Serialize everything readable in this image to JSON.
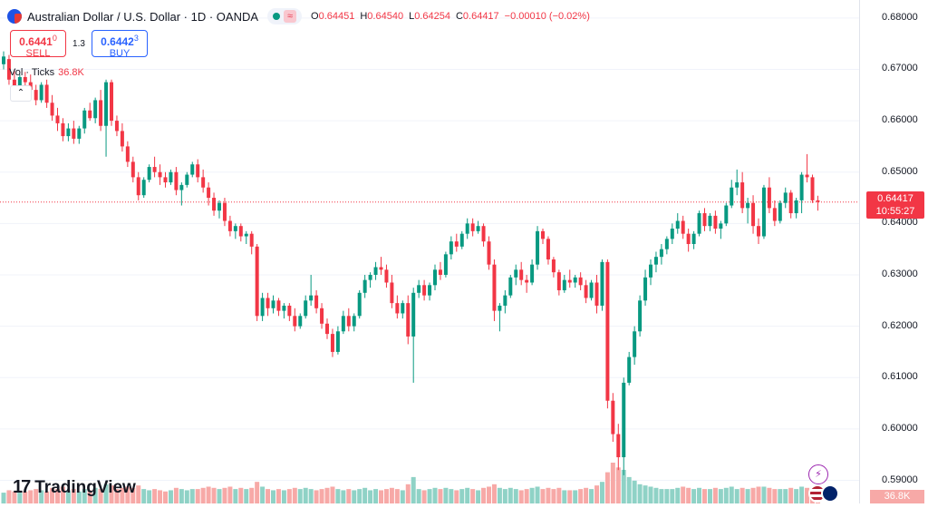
{
  "header": {
    "title": "Australian Dollar / U.S. Dollar · 1D · OANDA",
    "wave_symbol": "≈",
    "ohlc": [
      {
        "k": "O",
        "v": "0.64451"
      },
      {
        "k": "H",
        "v": "0.64540"
      },
      {
        "k": "L",
        "v": "0.64254"
      },
      {
        "k": "C",
        "v": "0.64417"
      },
      {
        "k": "",
        "v": "−0.00010 (−0.02%)"
      }
    ]
  },
  "trade": {
    "sell_price": "0.6441",
    "sell_sup": "0",
    "sell_label": "SELL",
    "spread": "1.3",
    "buy_price": "0.6442",
    "buy_sup": "3",
    "buy_label": "BUY"
  },
  "volume": {
    "label": "Vol · Ticks",
    "value": "36.8K",
    "tag": "36.8K"
  },
  "price_axis": {
    "ticks": [
      "0.68000",
      "0.67000",
      "0.66000",
      "0.65000",
      "0.64000",
      "0.63000",
      "0.62000",
      "0.61000",
      "0.60000",
      "0.59000"
    ],
    "current_price": "0.64417",
    "countdown": "10:55:27"
  },
  "brand": {
    "logo": "17",
    "name": "TradingView"
  },
  "colors": {
    "up": "#089981",
    "down": "#f23645",
    "up_vol": "#8fd2c6",
    "down_vol": "#f7a9a7"
  },
  "chart_data": {
    "type": "candlestick",
    "y_range": [
      0.5855,
      0.6835
    ],
    "current_price": 0.64417,
    "candles": [
      [
        0.671,
        0.6735,
        0.67,
        0.6725,
        9
      ],
      [
        0.672,
        0.6728,
        0.667,
        0.668,
        11
      ],
      [
        0.668,
        0.67,
        0.6655,
        0.6665,
        10
      ],
      [
        0.6665,
        0.669,
        0.666,
        0.6685,
        9
      ],
      [
        0.6685,
        0.6695,
        0.6665,
        0.6675,
        10
      ],
      [
        0.6675,
        0.669,
        0.665,
        0.666,
        11
      ],
      [
        0.666,
        0.667,
        0.663,
        0.664,
        12
      ],
      [
        0.664,
        0.6675,
        0.6635,
        0.667,
        11
      ],
      [
        0.667,
        0.668,
        0.6625,
        0.6635,
        10
      ],
      [
        0.6635,
        0.665,
        0.66,
        0.661,
        13
      ],
      [
        0.661,
        0.6625,
        0.658,
        0.6595,
        12
      ],
      [
        0.6595,
        0.6605,
        0.656,
        0.657,
        14
      ],
      [
        0.657,
        0.6595,
        0.656,
        0.6585,
        11
      ],
      [
        0.6585,
        0.66,
        0.6555,
        0.6565,
        12
      ],
      [
        0.6565,
        0.659,
        0.6555,
        0.6585,
        10
      ],
      [
        0.6585,
        0.6625,
        0.6575,
        0.662,
        12
      ],
      [
        0.662,
        0.6635,
        0.66,
        0.6605,
        11
      ],
      [
        0.6605,
        0.6645,
        0.6595,
        0.664,
        13
      ],
      [
        0.664,
        0.666,
        0.658,
        0.659,
        12
      ],
      [
        0.659,
        0.668,
        0.653,
        0.6675,
        16
      ],
      [
        0.6675,
        0.668,
        0.659,
        0.66,
        15
      ],
      [
        0.66,
        0.661,
        0.657,
        0.658,
        12
      ],
      [
        0.658,
        0.6595,
        0.654,
        0.655,
        13
      ],
      [
        0.655,
        0.656,
        0.651,
        0.652,
        14
      ],
      [
        0.652,
        0.653,
        0.648,
        0.649,
        13
      ],
      [
        0.649,
        0.65,
        0.6445,
        0.6455,
        15
      ],
      [
        0.6455,
        0.649,
        0.645,
        0.6485,
        12
      ],
      [
        0.6485,
        0.6515,
        0.648,
        0.651,
        11
      ],
      [
        0.651,
        0.653,
        0.649,
        0.65,
        12
      ],
      [
        0.65,
        0.6515,
        0.6475,
        0.649,
        11
      ],
      [
        0.649,
        0.65,
        0.647,
        0.648,
        10
      ],
      [
        0.648,
        0.6505,
        0.6475,
        0.65,
        11
      ],
      [
        0.65,
        0.651,
        0.6455,
        0.6465,
        13
      ],
      [
        0.6465,
        0.648,
        0.6435,
        0.6475,
        12
      ],
      [
        0.6475,
        0.65,
        0.647,
        0.6495,
        11
      ],
      [
        0.6495,
        0.652,
        0.649,
        0.6515,
        12
      ],
      [
        0.6515,
        0.6525,
        0.648,
        0.649,
        12
      ],
      [
        0.649,
        0.6505,
        0.646,
        0.647,
        13
      ],
      [
        0.647,
        0.648,
        0.6435,
        0.645,
        14
      ],
      [
        0.645,
        0.646,
        0.6415,
        0.6425,
        13
      ],
      [
        0.6425,
        0.6445,
        0.641,
        0.644,
        12
      ],
      [
        0.644,
        0.645,
        0.6395,
        0.6405,
        13
      ],
      [
        0.6405,
        0.6415,
        0.6375,
        0.6385,
        14
      ],
      [
        0.6385,
        0.64,
        0.637,
        0.6395,
        12
      ],
      [
        0.6395,
        0.64,
        0.6365,
        0.6375,
        13
      ],
      [
        0.6375,
        0.6385,
        0.636,
        0.638,
        12
      ],
      [
        0.638,
        0.6385,
        0.634,
        0.6355,
        13
      ],
      [
        0.6355,
        0.636,
        0.621,
        0.622,
        18
      ],
      [
        0.622,
        0.6265,
        0.621,
        0.6255,
        14
      ],
      [
        0.6255,
        0.6265,
        0.622,
        0.6235,
        12
      ],
      [
        0.6235,
        0.626,
        0.6225,
        0.625,
        11
      ],
      [
        0.625,
        0.6255,
        0.622,
        0.623,
        12
      ],
      [
        0.623,
        0.6245,
        0.6215,
        0.624,
        11
      ],
      [
        0.624,
        0.6245,
        0.621,
        0.622,
        12
      ],
      [
        0.622,
        0.6235,
        0.619,
        0.62,
        13
      ],
      [
        0.62,
        0.6225,
        0.6195,
        0.622,
        12
      ],
      [
        0.622,
        0.626,
        0.6215,
        0.625,
        13
      ],
      [
        0.625,
        0.63,
        0.624,
        0.626,
        12
      ],
      [
        0.626,
        0.627,
        0.6225,
        0.6235,
        11
      ],
      [
        0.6235,
        0.6245,
        0.6195,
        0.6205,
        12
      ],
      [
        0.6205,
        0.6215,
        0.6175,
        0.6185,
        13
      ],
      [
        0.6185,
        0.6195,
        0.614,
        0.615,
        14
      ],
      [
        0.615,
        0.62,
        0.6145,
        0.619,
        12
      ],
      [
        0.619,
        0.623,
        0.6185,
        0.622,
        11
      ],
      [
        0.622,
        0.6235,
        0.619,
        0.62,
        12
      ],
      [
        0.62,
        0.6225,
        0.619,
        0.622,
        11
      ],
      [
        0.622,
        0.627,
        0.6215,
        0.6265,
        12
      ],
      [
        0.6265,
        0.63,
        0.6255,
        0.629,
        13
      ],
      [
        0.629,
        0.6305,
        0.6275,
        0.63,
        11
      ],
      [
        0.63,
        0.6325,
        0.629,
        0.6315,
        12
      ],
      [
        0.6315,
        0.6335,
        0.63,
        0.631,
        11
      ],
      [
        0.631,
        0.632,
        0.6275,
        0.6285,
        12
      ],
      [
        0.6285,
        0.63,
        0.6235,
        0.6245,
        13
      ],
      [
        0.6245,
        0.626,
        0.6215,
        0.6225,
        12
      ],
      [
        0.6225,
        0.625,
        0.6215,
        0.6245,
        11
      ],
      [
        0.6245,
        0.626,
        0.6165,
        0.618,
        16
      ],
      [
        0.618,
        0.6275,
        0.609,
        0.6265,
        22
      ],
      [
        0.6265,
        0.629,
        0.6255,
        0.628,
        12
      ],
      [
        0.628,
        0.629,
        0.625,
        0.626,
        11
      ],
      [
        0.626,
        0.6285,
        0.625,
        0.628,
        12
      ],
      [
        0.628,
        0.632,
        0.627,
        0.631,
        13
      ],
      [
        0.631,
        0.6325,
        0.629,
        0.63,
        12
      ],
      [
        0.63,
        0.6345,
        0.6295,
        0.634,
        13
      ],
      [
        0.634,
        0.6375,
        0.633,
        0.6365,
        12
      ],
      [
        0.6365,
        0.638,
        0.6345,
        0.6355,
        11
      ],
      [
        0.6355,
        0.6385,
        0.635,
        0.638,
        12
      ],
      [
        0.638,
        0.641,
        0.637,
        0.64,
        13
      ],
      [
        0.64,
        0.641,
        0.6375,
        0.6385,
        12
      ],
      [
        0.6385,
        0.6405,
        0.638,
        0.6395,
        11
      ],
      [
        0.6395,
        0.64,
        0.6355,
        0.6365,
        13
      ],
      [
        0.6365,
        0.6375,
        0.631,
        0.632,
        14
      ],
      [
        0.632,
        0.633,
        0.621,
        0.623,
        16
      ],
      [
        0.623,
        0.6245,
        0.619,
        0.624,
        13
      ],
      [
        0.624,
        0.627,
        0.6225,
        0.626,
        12
      ],
      [
        0.626,
        0.63,
        0.6255,
        0.6295,
        13
      ],
      [
        0.6295,
        0.632,
        0.628,
        0.631,
        12
      ],
      [
        0.631,
        0.6325,
        0.628,
        0.629,
        11
      ],
      [
        0.629,
        0.63,
        0.6265,
        0.6285,
        12
      ],
      [
        0.6285,
        0.633,
        0.628,
        0.632,
        13
      ],
      [
        0.632,
        0.6395,
        0.631,
        0.6385,
        14
      ],
      [
        0.6385,
        0.639,
        0.636,
        0.637,
        12
      ],
      [
        0.637,
        0.6375,
        0.632,
        0.633,
        13
      ],
      [
        0.633,
        0.6335,
        0.6295,
        0.6305,
        12
      ],
      [
        0.6305,
        0.631,
        0.626,
        0.627,
        13
      ],
      [
        0.627,
        0.63,
        0.6265,
        0.629,
        11
      ],
      [
        0.629,
        0.631,
        0.6275,
        0.6285,
        11
      ],
      [
        0.6285,
        0.63,
        0.6275,
        0.6295,
        11
      ],
      [
        0.6295,
        0.6305,
        0.627,
        0.628,
        12
      ],
      [
        0.628,
        0.629,
        0.6245,
        0.6255,
        13
      ],
      [
        0.6255,
        0.629,
        0.625,
        0.6285,
        12
      ],
      [
        0.6285,
        0.63,
        0.6225,
        0.624,
        15
      ],
      [
        0.624,
        0.633,
        0.623,
        0.6325,
        18
      ],
      [
        0.6325,
        0.633,
        0.604,
        0.6055,
        26
      ],
      [
        0.6055,
        0.607,
        0.5975,
        0.599,
        34
      ],
      [
        0.599,
        0.601,
        0.592,
        0.5945,
        30
      ],
      [
        0.5945,
        0.61,
        0.591,
        0.609,
        28
      ],
      [
        0.609,
        0.615,
        0.6085,
        0.614,
        22
      ],
      [
        0.614,
        0.62,
        0.6125,
        0.619,
        19
      ],
      [
        0.619,
        0.626,
        0.618,
        0.625,
        16
      ],
      [
        0.625,
        0.631,
        0.624,
        0.6295,
        15
      ],
      [
        0.6295,
        0.633,
        0.628,
        0.632,
        14
      ],
      [
        0.632,
        0.6345,
        0.6305,
        0.6335,
        13
      ],
      [
        0.6335,
        0.636,
        0.632,
        0.635,
        12
      ],
      [
        0.635,
        0.6375,
        0.634,
        0.637,
        12
      ],
      [
        0.637,
        0.64,
        0.636,
        0.639,
        12
      ],
      [
        0.639,
        0.642,
        0.638,
        0.6405,
        13
      ],
      [
        0.6405,
        0.6415,
        0.637,
        0.638,
        14
      ],
      [
        0.638,
        0.639,
        0.6345,
        0.636,
        13
      ],
      [
        0.636,
        0.6385,
        0.635,
        0.638,
        12
      ],
      [
        0.638,
        0.6425,
        0.6375,
        0.642,
        13
      ],
      [
        0.642,
        0.643,
        0.6385,
        0.6395,
        12
      ],
      [
        0.6395,
        0.642,
        0.6385,
        0.6415,
        12
      ],
      [
        0.6415,
        0.6425,
        0.638,
        0.639,
        13
      ],
      [
        0.639,
        0.6405,
        0.637,
        0.64,
        12
      ],
      [
        0.64,
        0.644,
        0.6395,
        0.6435,
        13
      ],
      [
        0.6435,
        0.6485,
        0.643,
        0.647,
        14
      ],
      [
        0.647,
        0.6505,
        0.6455,
        0.648,
        12
      ],
      [
        0.648,
        0.65,
        0.642,
        0.643,
        13
      ],
      [
        0.643,
        0.645,
        0.64,
        0.644,
        12
      ],
      [
        0.644,
        0.6455,
        0.638,
        0.6395,
        13
      ],
      [
        0.6395,
        0.641,
        0.636,
        0.6375,
        14
      ],
      [
        0.6375,
        0.6475,
        0.637,
        0.647,
        14
      ],
      [
        0.647,
        0.649,
        0.642,
        0.643,
        13
      ],
      [
        0.643,
        0.6445,
        0.6395,
        0.6405,
        12
      ],
      [
        0.6405,
        0.6445,
        0.64,
        0.644,
        12
      ],
      [
        0.644,
        0.647,
        0.643,
        0.646,
        12
      ],
      [
        0.646,
        0.6465,
        0.641,
        0.642,
        13
      ],
      [
        0.642,
        0.645,
        0.641,
        0.6445,
        12
      ],
      [
        0.6445,
        0.65,
        0.642,
        0.6495,
        14
      ],
      [
        0.6495,
        0.6535,
        0.648,
        0.649,
        13
      ],
      [
        0.649,
        0.6495,
        0.644,
        0.6445,
        13
      ],
      [
        0.6445,
        0.6454,
        0.6425,
        0.6442,
        14
      ]
    ]
  }
}
